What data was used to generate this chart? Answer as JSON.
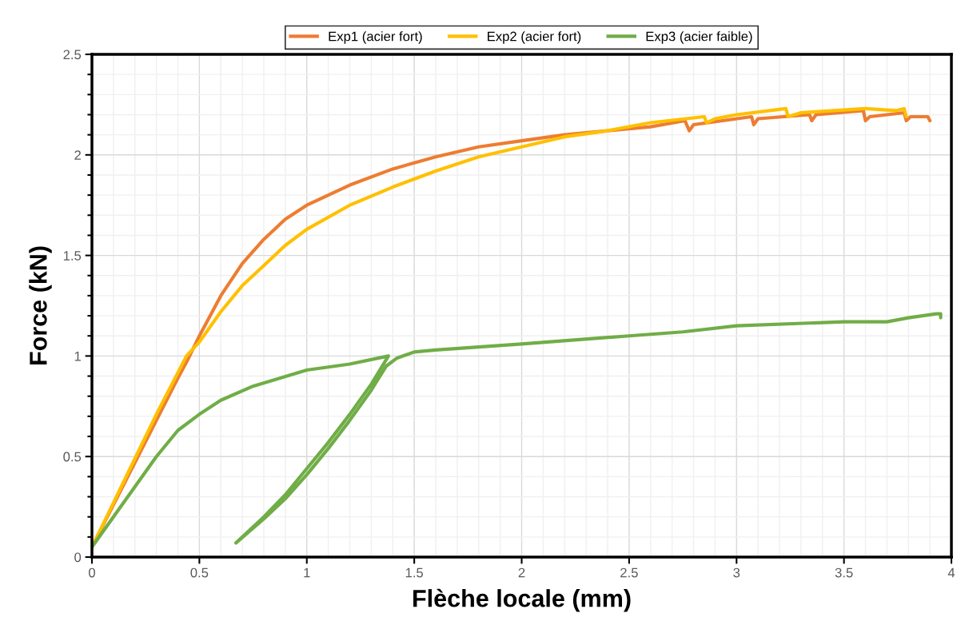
{
  "chart_data": {
    "type": "line",
    "xlabel": "Flèche locale (mm)",
    "ylabel": "Force (kN)",
    "xlim": [
      0,
      4
    ],
    "ylim": [
      0,
      2.5
    ],
    "xticks": [
      0,
      0.5,
      1,
      1.5,
      2,
      2.5,
      3,
      3.5,
      4
    ],
    "yticks": [
      0,
      0.5,
      1,
      1.5,
      2,
      2.5
    ],
    "grid": true,
    "legend": "top",
    "marker": "none",
    "line_style": "solid",
    "series": [
      {
        "name": "Exp1 (acier fort)",
        "color": "#ed7d31",
        "x": [
          0,
          0.1,
          0.2,
          0.3,
          0.4,
          0.45,
          0.5,
          0.6,
          0.7,
          0.8,
          0.9,
          1.0,
          1.2,
          1.4,
          1.6,
          1.8,
          2.0,
          2.2,
          2.4,
          2.6,
          2.76,
          2.78,
          2.8,
          3.07,
          3.08,
          3.1,
          3.34,
          3.35,
          3.37,
          3.59,
          3.6,
          3.62,
          3.78,
          3.79,
          3.81,
          3.89,
          3.9
        ],
        "values": [
          0.05,
          0.26,
          0.47,
          0.68,
          0.89,
          0.99,
          1.1,
          1.3,
          1.46,
          1.58,
          1.68,
          1.75,
          1.85,
          1.93,
          1.99,
          2.04,
          2.07,
          2.1,
          2.12,
          2.14,
          2.17,
          2.12,
          2.15,
          2.19,
          2.15,
          2.18,
          2.2,
          2.17,
          2.2,
          2.22,
          2.17,
          2.19,
          2.21,
          2.17,
          2.19,
          2.19,
          2.17
        ]
      },
      {
        "name": "Exp2 (acier fort)",
        "color": "#ffc000",
        "x": [
          0,
          0.1,
          0.2,
          0.3,
          0.44,
          0.5,
          0.6,
          0.7,
          0.8,
          0.9,
          1.0,
          1.2,
          1.4,
          1.5,
          1.6,
          1.8,
          2.0,
          2.2,
          2.4,
          2.6,
          2.85,
          2.86,
          2.9,
          3.0,
          3.23,
          3.24,
          3.3,
          3.6,
          3.74,
          3.78,
          3.79
        ],
        "values": [
          0.05,
          0.27,
          0.49,
          0.71,
          1.0,
          1.07,
          1.22,
          1.35,
          1.45,
          1.55,
          1.63,
          1.75,
          1.84,
          1.88,
          1.92,
          1.99,
          2.04,
          2.09,
          2.12,
          2.16,
          2.19,
          2.16,
          2.18,
          2.2,
          2.23,
          2.19,
          2.21,
          2.23,
          2.22,
          2.23,
          2.19
        ]
      },
      {
        "name": "Exp3 (acier faible)",
        "color": "#70ad47",
        "x": [
          0,
          0.1,
          0.2,
          0.3,
          0.4,
          0.5,
          0.6,
          0.75,
          1.0,
          1.2,
          1.38,
          1.3,
          1.2,
          1.1,
          1.0,
          0.9,
          0.8,
          0.67,
          0.8,
          0.9,
          1.0,
          1.1,
          1.2,
          1.3,
          1.37,
          1.42,
          1.5,
          1.6,
          2.0,
          2.5,
          2.75,
          3.0,
          3.5,
          3.7,
          3.8,
          3.93,
          3.95,
          3.95
        ],
        "values": [
          0.05,
          0.2,
          0.35,
          0.5,
          0.63,
          0.71,
          0.78,
          0.85,
          0.93,
          0.96,
          1.0,
          0.86,
          0.71,
          0.57,
          0.44,
          0.31,
          0.2,
          0.07,
          0.19,
          0.29,
          0.41,
          0.54,
          0.68,
          0.83,
          0.95,
          0.99,
          1.02,
          1.03,
          1.06,
          1.1,
          1.12,
          1.15,
          1.17,
          1.17,
          1.19,
          1.21,
          1.21,
          1.19
        ]
      }
    ]
  }
}
